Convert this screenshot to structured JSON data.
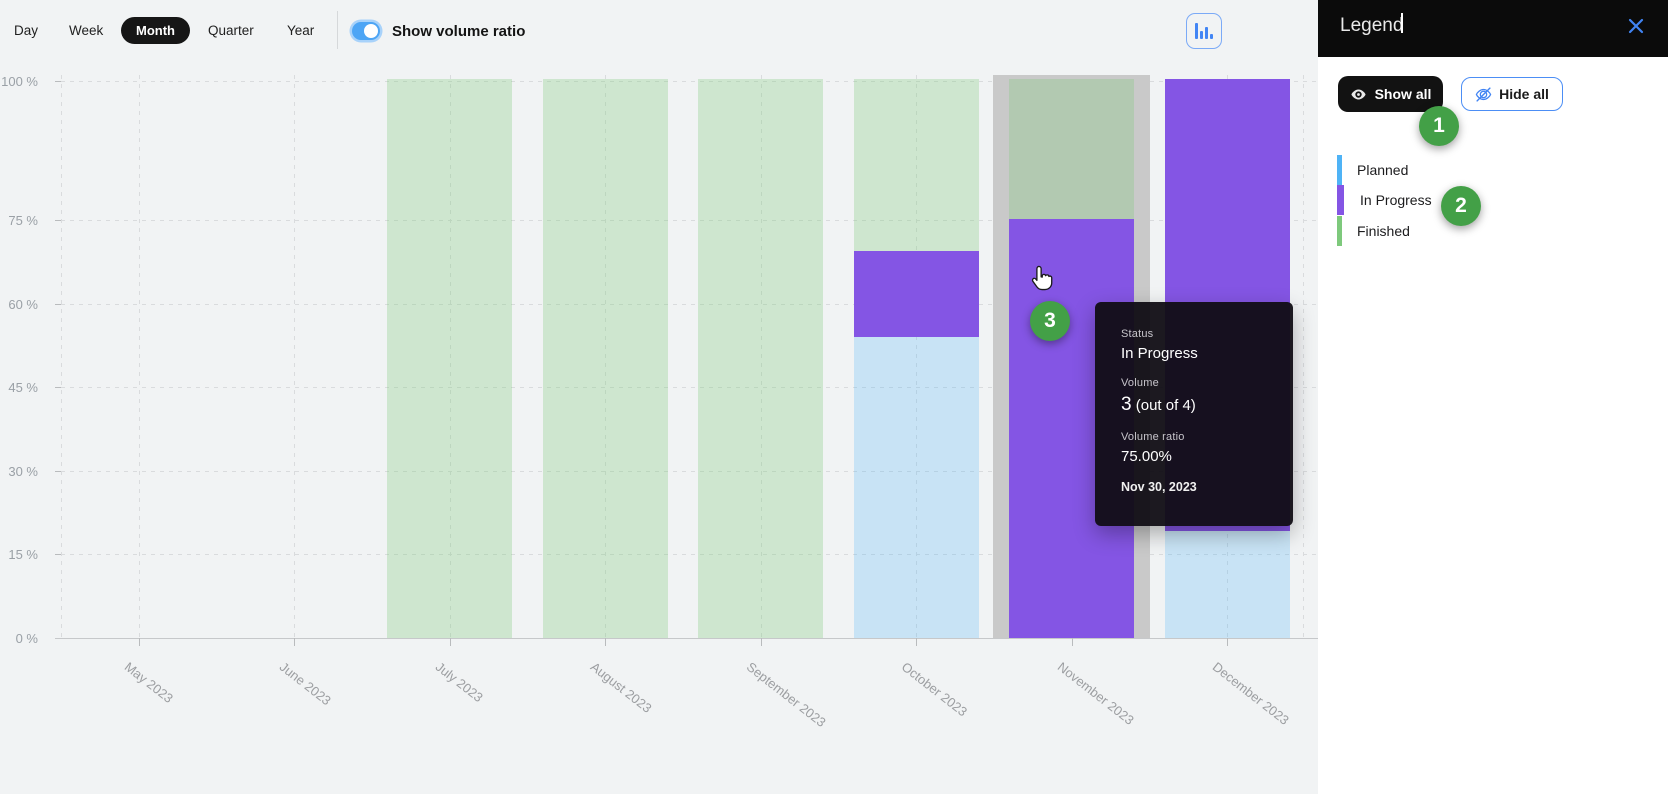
{
  "toolbar": {
    "tabs": [
      {
        "label": "Day",
        "active": false
      },
      {
        "label": "Week",
        "active": false
      },
      {
        "label": "Month",
        "active": true
      },
      {
        "label": "Quarter",
        "active": false
      },
      {
        "label": "Year",
        "active": false
      }
    ],
    "toggle": {
      "label": "Show volume ratio",
      "on": true
    },
    "chart_type_icon": "bar-chart-icon"
  },
  "legend_panel": {
    "title": "Legend",
    "icons": {
      "close": "close-icon",
      "show_all": "eye-icon",
      "hide_all": "eye-slash-icon"
    },
    "buttons": {
      "show_all": "Show all",
      "hide_all": "Hide all"
    },
    "items": [
      {
        "label": "Planned",
        "color": "#4fb3f6"
      },
      {
        "label": "In Progress",
        "color": "#8455e4",
        "current": true
      },
      {
        "label": "Finished",
        "color": "#7ec97c"
      }
    ]
  },
  "tooltip": {
    "status_label": "Status",
    "status_value": "In Progress",
    "volume_label": "Volume",
    "volume_value": "3",
    "volume_total": "(out of 4)",
    "ratio_label": "Volume ratio",
    "ratio_value": "75.00%",
    "date": "Nov 30, 2023"
  },
  "annotations": {
    "badges": [
      "1",
      "2",
      "3"
    ]
  },
  "colors": {
    "background": "#f1f3f4",
    "accent_blue": "#4285f4",
    "badge_green": "#43a047",
    "hover_band": "#c9c9c9",
    "panel_header": "#0b0b0b",
    "tooltip_bg": "rgba(16,13,20,0.95)"
  },
  "chart_data": {
    "type": "bar",
    "stacked": true,
    "title": "",
    "xlabel": "",
    "ylabel": "",
    "categories": [
      "May 2023",
      "June 2023",
      "July 2023",
      "August 2023",
      "September 2023",
      "October 2023",
      "November 2023",
      "December 2023"
    ],
    "series": [
      {
        "name": "Planned",
        "values": [
          0,
          0,
          0,
          0,
          0,
          53.8,
          0,
          19.2
        ],
        "legend_color": "#4fb3f6",
        "display_color": "rgba(79,179,246,0.25)"
      },
      {
        "name": "In Progress",
        "values": [
          0,
          0,
          0,
          0,
          0,
          15.4,
          75,
          80.8
        ],
        "legend_color": "#8455e4",
        "display_color": "#8455e4"
      },
      {
        "name": "Finished",
        "values": [
          0,
          0,
          100,
          100,
          100,
          30.8,
          25,
          0
        ],
        "legend_color": "#7ec97c",
        "display_color": "rgba(126,201,124,0.3)"
      }
    ],
    "ylim": [
      0,
      100
    ],
    "yticks": {
      "values": [
        0,
        15,
        30,
        45,
        60,
        75,
        100
      ],
      "labels": [
        "0 %",
        "15 %",
        "30 %",
        "45 %",
        "60 %",
        "75 %",
        "100 %"
      ]
    },
    "grid": "dashed",
    "legend_position": "right-panel",
    "hover": {
      "category": "November 2023",
      "band_color": "#c9c9c9",
      "point": {
        "status": "In Progress",
        "volume": 3,
        "total": 4,
        "ratio": "75.00%",
        "date": "Nov 30, 2023"
      }
    }
  }
}
